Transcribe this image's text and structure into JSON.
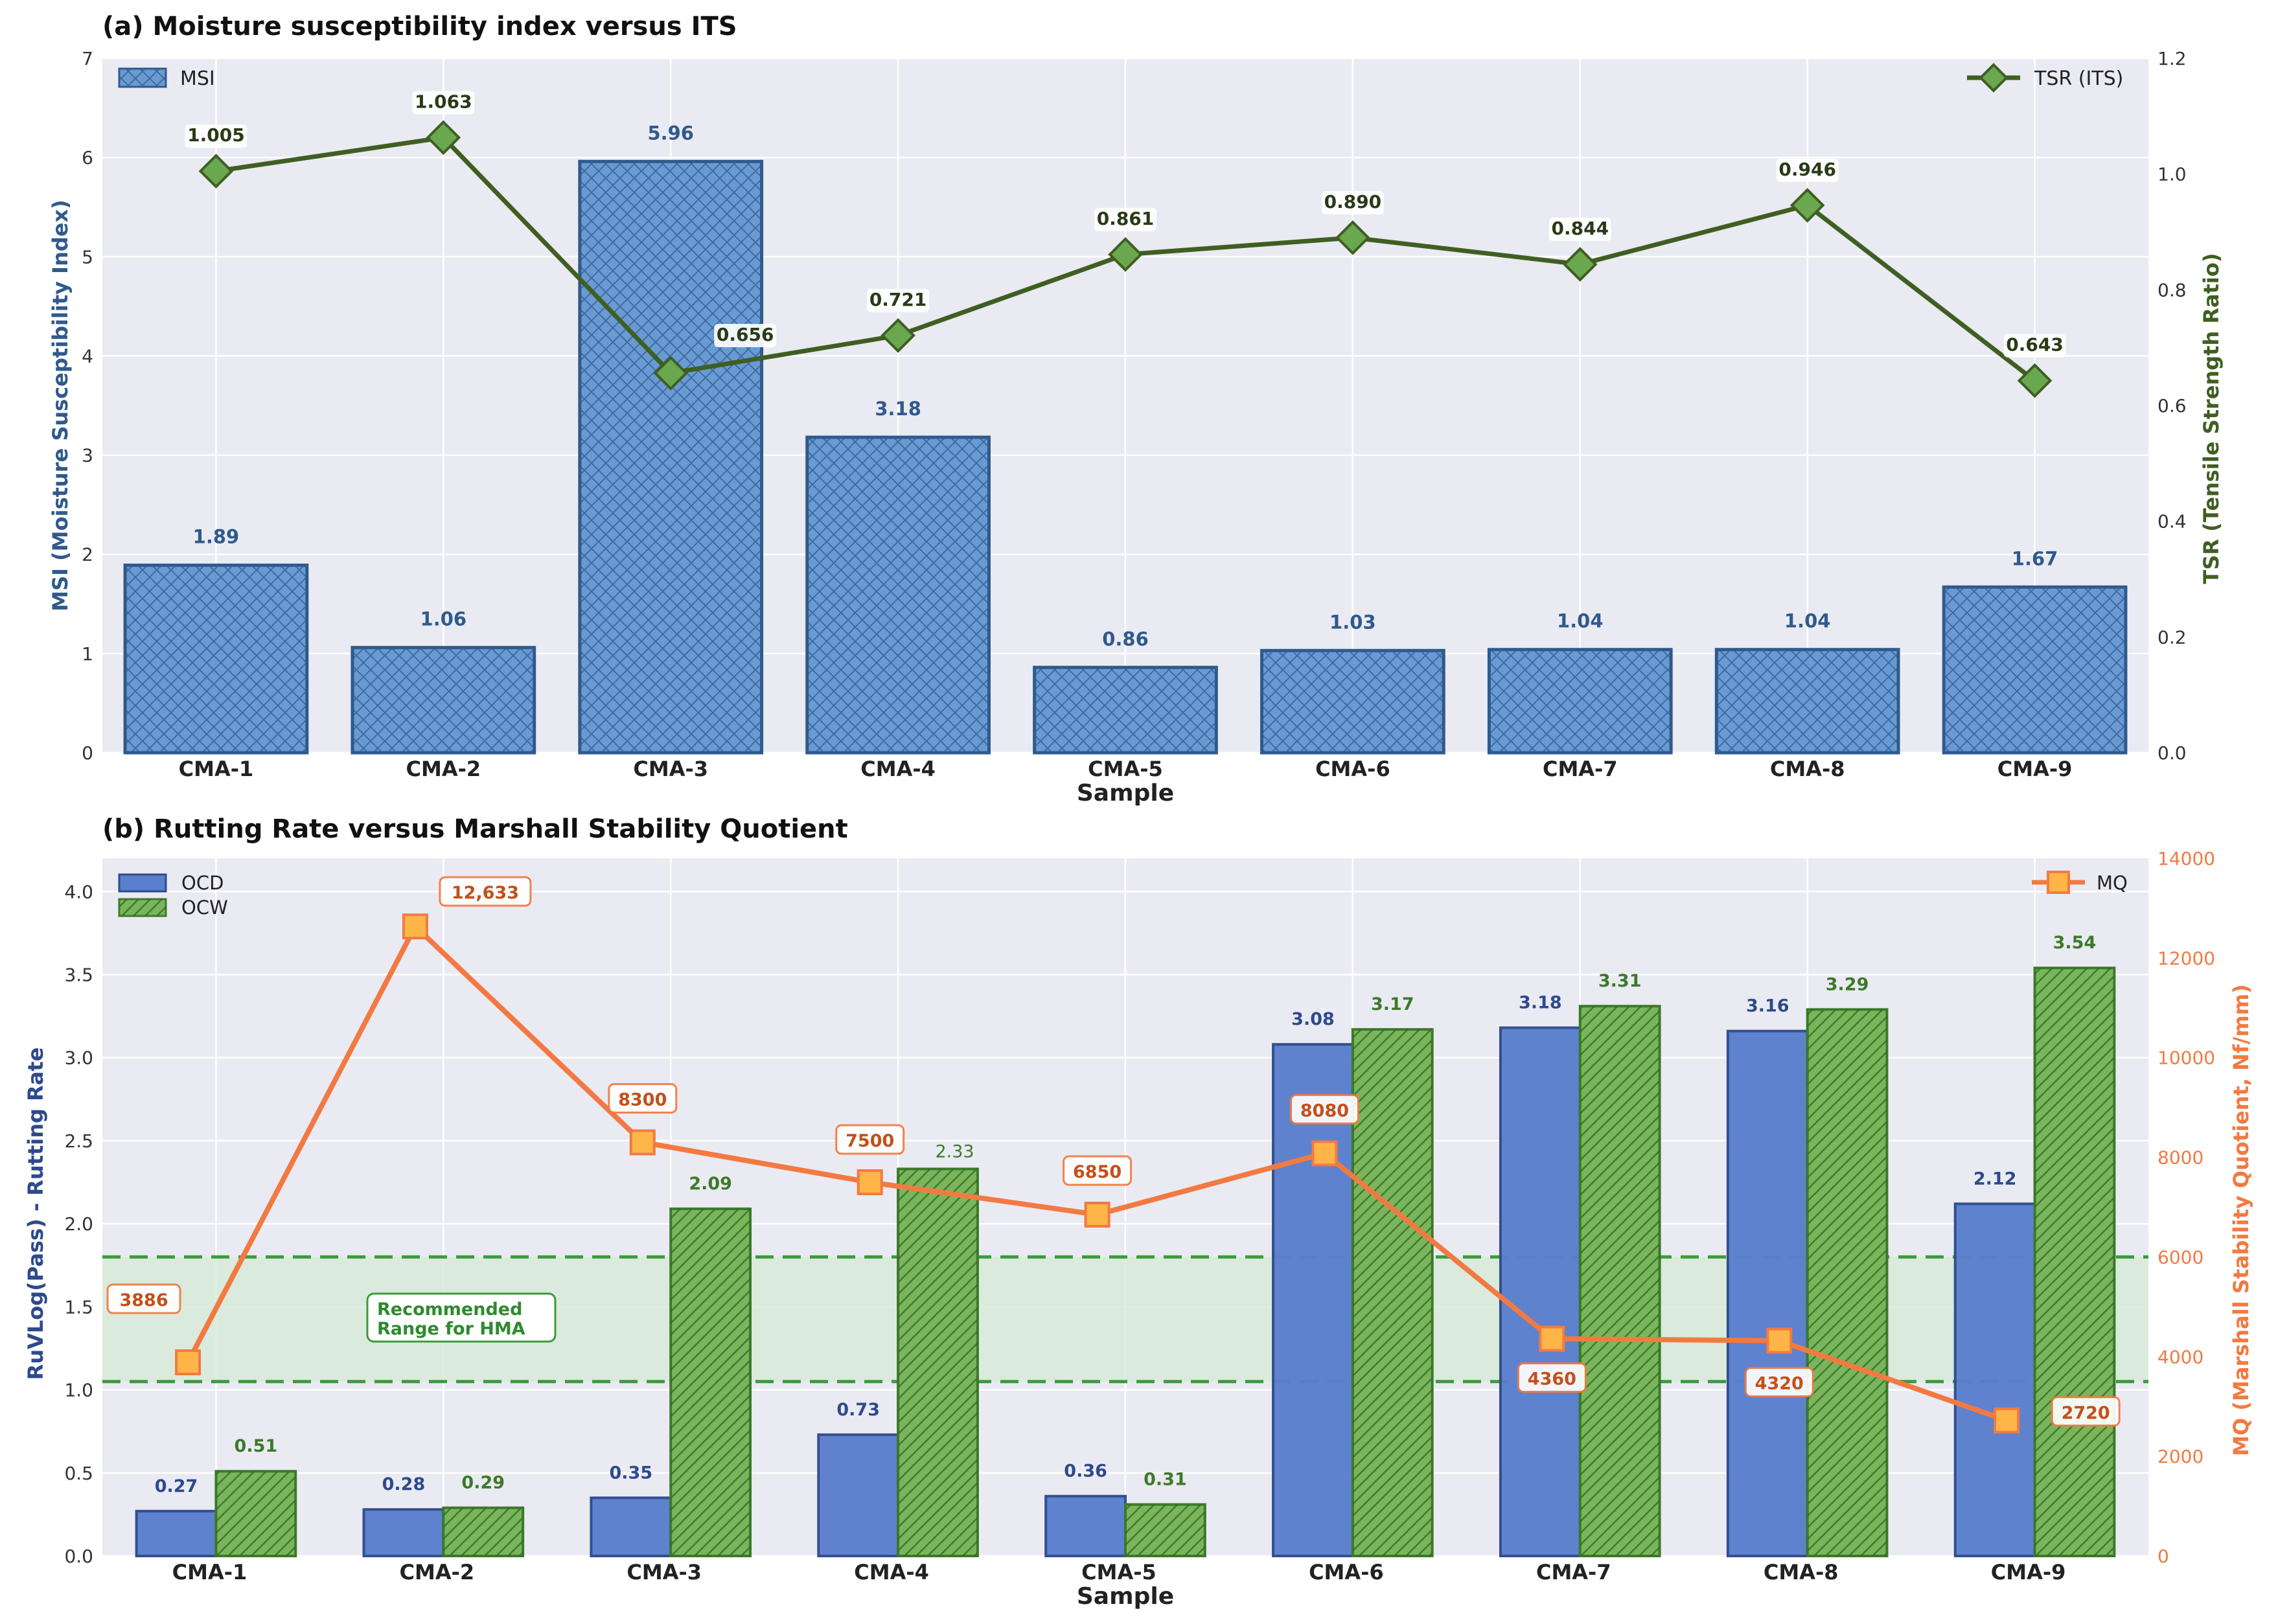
{
  "colors": {
    "plot_bg": "#eaeaf2",
    "msi_bar": "#6a9ad4",
    "msi_edge": "#2f5a8c",
    "msi_label": "#2f5a8c",
    "tsr_line": "#3f5f22",
    "tsr_marker": "#6aa84f",
    "ocd_bar": "#5b7fcd",
    "ocd_edge": "#2e4a8c",
    "ocw_bar": "#7ab55c",
    "ocw_edge": "#3c7a2a",
    "mq_line": "#f27a42",
    "mq_marker": "#ffb547",
    "band_line": "#3c9a3c",
    "band_fill": "#d6ead6"
  },
  "chart_data": [
    {
      "type": "bar+line",
      "title": "(a) Moisture susceptibility index versus ITS",
      "xlabel": "Sample",
      "ylabel": "MSI (Moisture Susceptibility Index)",
      "y2label": "TSR (Tensile Strength Ratio)",
      "categories": [
        "CMA-1",
        "CMA-2",
        "CMA-3",
        "CMA-4",
        "CMA-5",
        "CMA-6",
        "CMA-7",
        "CMA-8",
        "CMA-9"
      ],
      "ylim": [
        0,
        7
      ],
      "yticks": [
        "0",
        "1",
        "2",
        "3",
        "4",
        "5",
        "6",
        "7"
      ],
      "y2lim": [
        0,
        1.2
      ],
      "y2ticks": [
        "0.0",
        "0.2",
        "0.4",
        "0.6",
        "0.8",
        "1.0",
        "1.2"
      ],
      "grid": true,
      "series": [
        {
          "name": "MSI",
          "kind": "bar",
          "axis": "left",
          "values": [
            1.89,
            1.06,
            5.96,
            3.18,
            0.86,
            1.03,
            1.04,
            1.04,
            1.67
          ],
          "labels": [
            "1.89",
            "1.06",
            "5.96",
            "3.18",
            "0.86",
            "1.03",
            "1.04",
            "1.04",
            "1.67"
          ]
        },
        {
          "name": "TSR (ITS)",
          "kind": "line",
          "axis": "right",
          "values": [
            1.005,
            1.063,
            0.656,
            0.721,
            0.861,
            0.89,
            0.844,
            0.946,
            0.643
          ],
          "labels": [
            "1.005",
            "1.063",
            "0.656",
            "0.721",
            "0.861",
            "0.890",
            "0.844",
            "0.946",
            "0.643"
          ]
        }
      ],
      "legend": {
        "left": "MSI",
        "right": "TSR (ITS)"
      }
    },
    {
      "type": "bar+line",
      "title": "(b) Rutting Rate versus Marshall Stability Quotient",
      "xlabel": "Sample",
      "ylabel": "RuVLog(Pass) - Rutting Rate",
      "y2label": "MQ (Marshall Stability Quotient, Nf/mm)",
      "categories": [
        "CMA-1",
        "CMA-2",
        "CMA-3",
        "CMA-4",
        "CMA-5",
        "CMA-6",
        "CMA-7",
        "CMA-8",
        "CMA-9"
      ],
      "ylim": [
        0,
        4.2
      ],
      "yticks": [
        "0.0",
        "0.5",
        "1.0",
        "1.5",
        "2.0",
        "2.5",
        "3.0",
        "3.5",
        "4.0"
      ],
      "y2lim": [
        0,
        14000
      ],
      "y2ticks": [
        "0",
        "2000",
        "4000",
        "6000",
        "8000",
        "10000",
        "12000",
        "14000"
      ],
      "grid": true,
      "series": [
        {
          "name": "OCD",
          "kind": "bar",
          "axis": "left",
          "values": [
            0.27,
            0.28,
            0.35,
            0.73,
            0.36,
            3.08,
            3.18,
            3.16,
            2.12
          ],
          "labels": [
            "0.27",
            "0.28",
            "0.35",
            "0.73",
            "0.36",
            "3.08",
            "3.18",
            "3.16",
            "2.12"
          ]
        },
        {
          "name": "OCW",
          "kind": "bar",
          "axis": "left",
          "values": [
            0.51,
            0.29,
            2.09,
            2.33,
            0.31,
            3.17,
            3.31,
            3.29,
            3.54
          ],
          "labels": [
            "0.51",
            "0.29",
            "2.09",
            "2.33",
            "0.31",
            "3.17",
            "3.31",
            "3.29",
            "3.54"
          ]
        },
        {
          "name": "MQ",
          "kind": "line",
          "axis": "right",
          "values": [
            3886,
            12633,
            8300,
            7500,
            6850,
            8080,
            4360,
            4320,
            2720
          ],
          "labels": [
            "3886",
            "12,633",
            "8300",
            "7500",
            "6850",
            "8080",
            "4360",
            "4320",
            "2720"
          ]
        }
      ],
      "band": {
        "from": 6000,
        "to": 3500,
        "axis": "right",
        "label_lines": [
          "Recommended",
          "Range for HMA"
        ]
      },
      "legend": {
        "left": [
          "OCD",
          "OCW"
        ],
        "right": "MQ"
      }
    }
  ]
}
